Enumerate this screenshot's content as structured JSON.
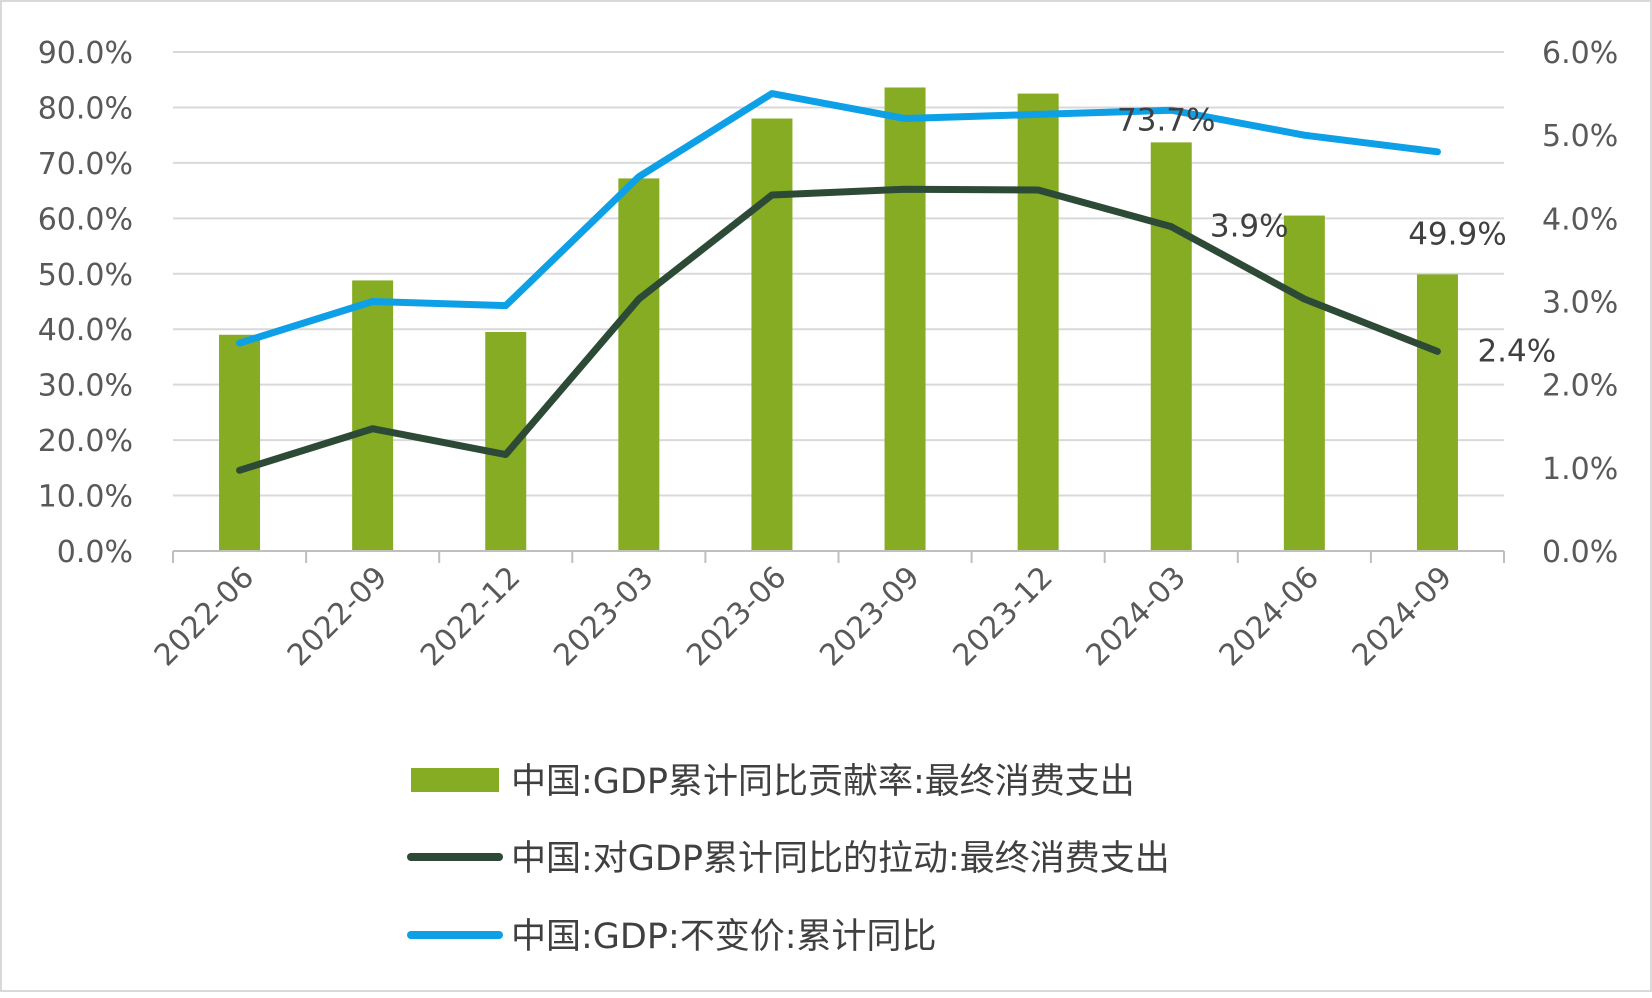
{
  "chart_data": {
    "type": "bar+line",
    "title": "",
    "categories": [
      "2022-06",
      "2022-09",
      "2022-12",
      "2023-03",
      "2023-06",
      "2023-09",
      "2023-12",
      "2024-03",
      "2024-06",
      "2024-09"
    ],
    "y_left": {
      "min": 0,
      "max": 90,
      "step": 10,
      "ticks": [
        "0.0%",
        "10.0%",
        "20.0%",
        "30.0%",
        "40.0%",
        "50.0%",
        "60.0%",
        "70.0%",
        "80.0%",
        "90.0%"
      ]
    },
    "y_right": {
      "min": 0,
      "max": 6,
      "step": 1,
      "ticks": [
        "0.0%",
        "1.0%",
        "2.0%",
        "3.0%",
        "4.0%",
        "5.0%",
        "6.0%"
      ]
    },
    "grid": true,
    "legend_position": "bottom",
    "series": [
      {
        "name": "中国:GDP累计同比贡献率:最终消费支出",
        "type": "bar",
        "axis": "left",
        "color": "#86ac24",
        "values": [
          39.0,
          48.8,
          39.5,
          67.2,
          78.0,
          83.6,
          82.5,
          73.7,
          60.5,
          49.9
        ]
      },
      {
        "name": "中国:对GDP累计同比的拉动:最终消费支出",
        "type": "line",
        "axis": "right",
        "color": "#2d4a37",
        "values": [
          0.97,
          1.47,
          1.16,
          3.03,
          4.28,
          4.35,
          4.34,
          3.9,
          3.03,
          2.4
        ]
      },
      {
        "name": "中国:GDP:不变价:累计同比",
        "type": "line",
        "axis": "right",
        "color": "#0ea0e6",
        "values": [
          2.5,
          3.0,
          2.95,
          4.5,
          5.5,
          5.2,
          5.25,
          5.3,
          5.0,
          4.8
        ]
      }
    ],
    "annotations": [
      {
        "text": "73.7%",
        "series": 0,
        "index": 7
      },
      {
        "text": "3.9%",
        "series": 1,
        "index": 7
      },
      {
        "text": "49.9%",
        "series": 0,
        "index": 9
      },
      {
        "text": "2.4%",
        "series": 1,
        "index": 9
      }
    ]
  }
}
